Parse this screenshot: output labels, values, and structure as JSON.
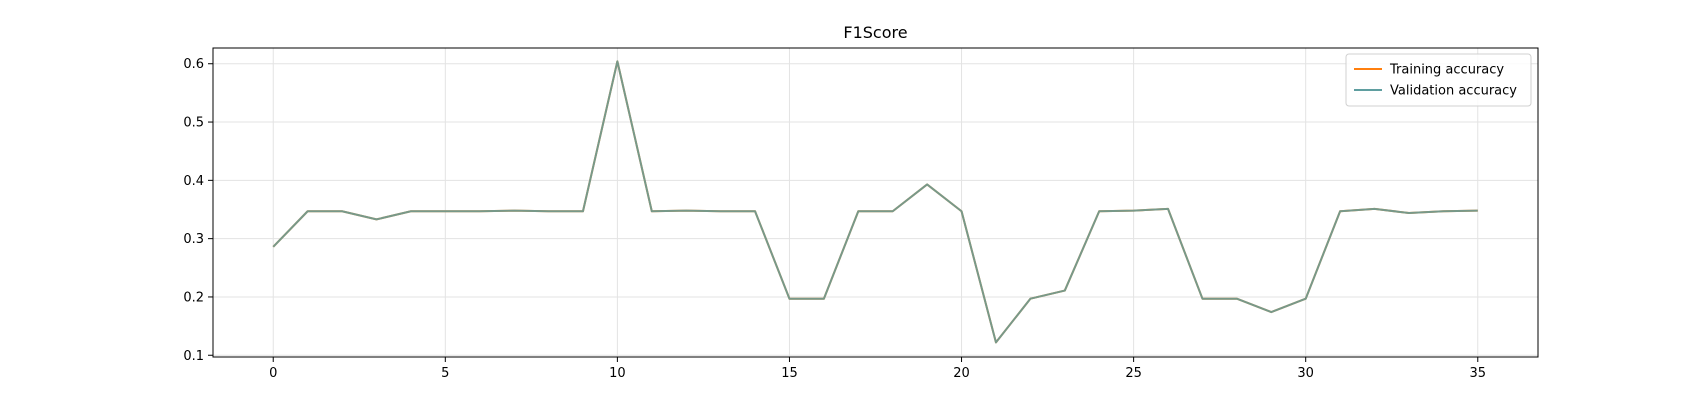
{
  "chart_data": {
    "type": "line",
    "title": "F1Score",
    "xlabel": "",
    "ylabel": "",
    "xlim": [
      -1.75,
      36.75
    ],
    "ylim": [
      0.097,
      0.627
    ],
    "xticks": [
      0,
      5,
      10,
      15,
      20,
      25,
      30,
      35
    ],
    "yticks": [
      0.1,
      0.2,
      0.3,
      0.4,
      0.5,
      0.6
    ],
    "grid": true,
    "legend_position": "top-right",
    "x": [
      0,
      1,
      2,
      3,
      4,
      5,
      6,
      7,
      8,
      9,
      10,
      11,
      12,
      13,
      14,
      15,
      16,
      17,
      18,
      19,
      20,
      21,
      22,
      23,
      24,
      25,
      26,
      27,
      28,
      29,
      30,
      31,
      32,
      33,
      34,
      35
    ],
    "series": [
      {
        "name": "Training accuracy",
        "color": "#ff7f0e",
        "values": [
          0.286,
          0.347,
          0.347,
          0.333,
          0.347,
          0.347,
          0.347,
          0.348,
          0.347,
          0.347,
          0.604,
          0.347,
          0.348,
          0.347,
          0.347,
          0.197,
          0.197,
          0.347,
          0.347,
          0.393,
          0.347,
          0.122,
          0.197,
          0.211,
          0.347,
          0.348,
          0.351,
          0.197,
          0.197,
          0.174,
          0.197,
          0.347,
          0.351,
          0.344,
          0.347,
          0.348
        ]
      },
      {
        "name": "Validation accuracy",
        "color": "#5f9ea0",
        "values": [
          0.286,
          0.347,
          0.347,
          0.333,
          0.347,
          0.347,
          0.347,
          0.348,
          0.347,
          0.347,
          0.604,
          0.347,
          0.348,
          0.347,
          0.347,
          0.197,
          0.197,
          0.347,
          0.347,
          0.393,
          0.347,
          0.122,
          0.197,
          0.211,
          0.347,
          0.348,
          0.351,
          0.197,
          0.197,
          0.174,
          0.197,
          0.347,
          0.351,
          0.344,
          0.347,
          0.348
        ]
      }
    ]
  }
}
